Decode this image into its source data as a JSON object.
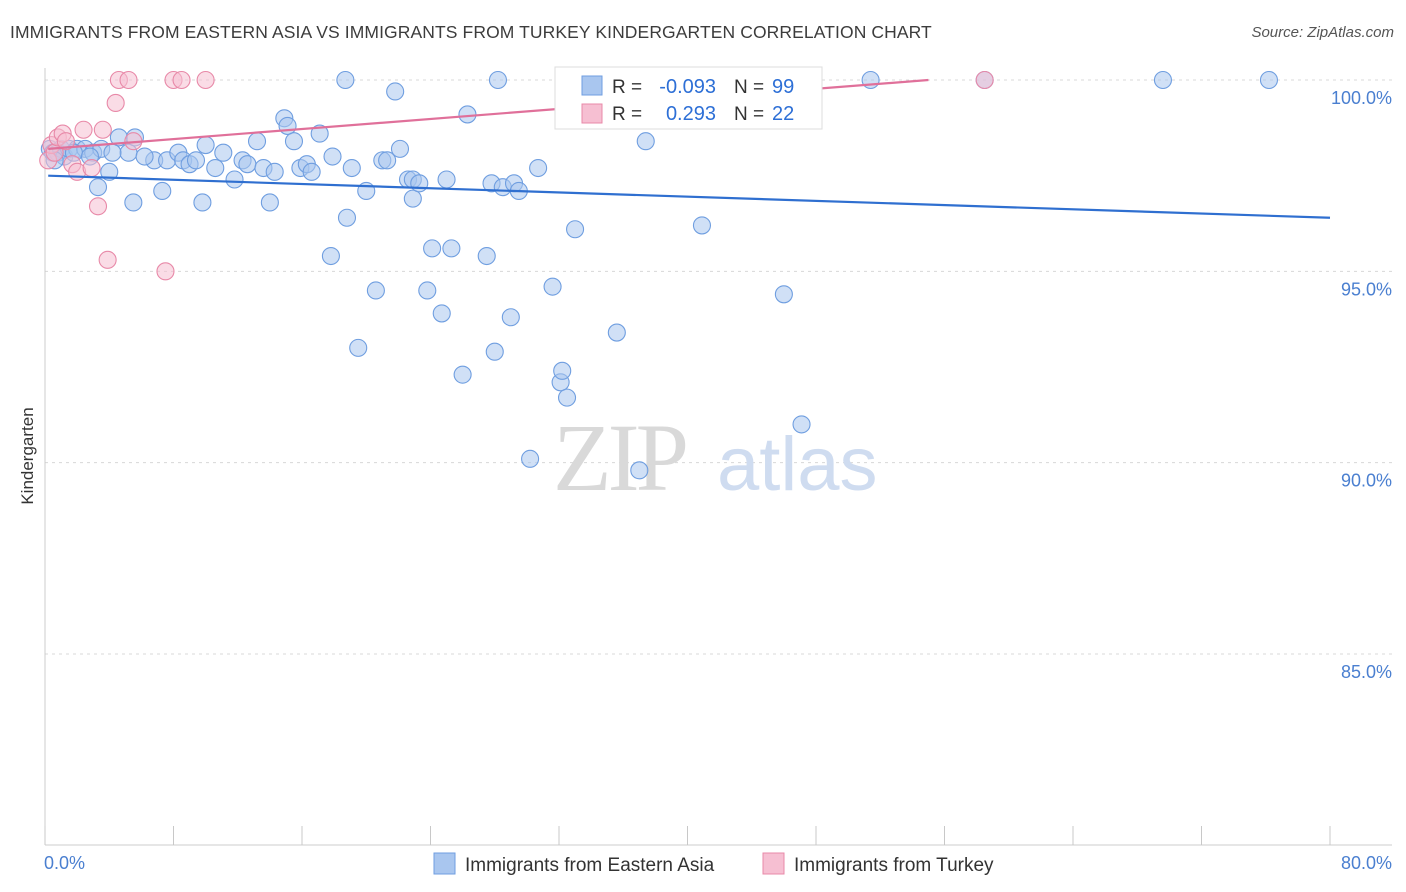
{
  "title": "IMMIGRANTS FROM EASTERN ASIA VS IMMIGRANTS FROM TURKEY KINDERGARTEN CORRELATION CHART",
  "source": "Source: ZipAtlas.com",
  "watermark": {
    "zip": "ZIP",
    "atlas": "atlas"
  },
  "chart_data": {
    "type": "scatter",
    "ylabel": "Kindergarten",
    "x_ticks": [
      "0.0%",
      "80.0%"
    ],
    "y_ticks": [
      "85.0%",
      "90.0%",
      "95.0%",
      "100.0%"
    ],
    "xlim": [
      0,
      80
    ],
    "ylim": [
      80.5,
      100.9
    ],
    "grid": "horizontal dashed",
    "legend_placement": "bottom-center",
    "stats_box": [
      {
        "r_label": "R =",
        "r": "-0.093",
        "n_label": "N =",
        "n": "99"
      },
      {
        "r_label": "R =",
        "r": "0.293",
        "n_label": "N =",
        "n": "22"
      }
    ],
    "series": [
      {
        "name": "Immigrants from Eastern Asia",
        "color": "#6f9ee0",
        "fill": "#a9c6ef",
        "trend": {
          "x0": 0.2,
          "y0": 97.5,
          "x1": 80,
          "y1": 96.4
        },
        "points": [
          [
            0.3,
            98.2
          ],
          [
            0.5,
            98.1
          ],
          [
            0.8,
            98.1
          ],
          [
            1.0,
            98.2
          ],
          [
            1.2,
            98.0
          ],
          [
            1.5,
            98.2
          ],
          [
            2.0,
            98.2
          ],
          [
            2.5,
            98.2
          ],
          [
            3.0,
            98.1
          ],
          [
            3.5,
            98.2
          ],
          [
            3.3,
            97.2
          ],
          [
            4.0,
            97.6
          ],
          [
            4.6,
            98.5
          ],
          [
            5.2,
            98.1
          ],
          [
            5.6,
            98.5
          ],
          [
            5.5,
            96.8
          ],
          [
            6.8,
            97.9
          ],
          [
            7.3,
            97.1
          ],
          [
            7.6,
            97.9
          ],
          [
            8.3,
            98.1
          ],
          [
            8.6,
            97.9
          ],
          [
            9.0,
            97.8
          ],
          [
            9.4,
            97.9
          ],
          [
            9.8,
            96.8
          ],
          [
            10.0,
            98.3
          ],
          [
            10.6,
            97.7
          ],
          [
            11.1,
            98.1
          ],
          [
            11.8,
            97.4
          ],
          [
            12.3,
            97.9
          ],
          [
            12.6,
            97.8
          ],
          [
            13.2,
            98.4
          ],
          [
            13.6,
            97.7
          ],
          [
            14.0,
            96.8
          ],
          [
            14.3,
            97.6
          ],
          [
            14.9,
            99.0
          ],
          [
            15.1,
            98.8
          ],
          [
            15.5,
            98.4
          ],
          [
            15.9,
            97.7
          ],
          [
            16.3,
            97.8
          ],
          [
            16.6,
            97.6
          ],
          [
            17.1,
            98.6
          ],
          [
            17.8,
            95.4
          ],
          [
            17.9,
            98.0
          ],
          [
            18.7,
            100.0
          ],
          [
            18.8,
            96.4
          ],
          [
            19.1,
            97.7
          ],
          [
            19.5,
            93.0
          ],
          [
            20.0,
            97.1
          ],
          [
            20.6,
            94.5
          ],
          [
            21.0,
            97.9
          ],
          [
            21.3,
            97.9
          ],
          [
            21.8,
            99.7
          ],
          [
            22.1,
            98.2
          ],
          [
            22.6,
            97.4
          ],
          [
            22.9,
            97.4
          ],
          [
            22.9,
            96.9
          ],
          [
            23.3,
            97.3
          ],
          [
            23.8,
            94.5
          ],
          [
            24.1,
            95.6
          ],
          [
            24.7,
            93.9
          ],
          [
            25.0,
            97.4
          ],
          [
            25.3,
            95.6
          ],
          [
            26.0,
            92.3
          ],
          [
            26.3,
            99.1
          ],
          [
            27.5,
            95.4
          ],
          [
            27.8,
            97.3
          ],
          [
            28.0,
            92.9
          ],
          [
            28.2,
            100.0
          ],
          [
            28.5,
            97.2
          ],
          [
            29.0,
            93.8
          ],
          [
            29.2,
            97.3
          ],
          [
            29.5,
            97.1
          ],
          [
            30.2,
            90.1
          ],
          [
            30.7,
            97.7
          ],
          [
            31.6,
            94.6
          ],
          [
            32.1,
            92.1
          ],
          [
            32.2,
            92.4
          ],
          [
            32.5,
            91.7
          ],
          [
            33.0,
            96.1
          ],
          [
            34.1,
            100.0
          ],
          [
            35.0,
            100.0
          ],
          [
            35.6,
            93.4
          ],
          [
            36.0,
            100.0
          ],
          [
            37.0,
            89.8
          ],
          [
            37.4,
            98.4
          ],
          [
            40.2,
            100.0
          ],
          [
            40.9,
            96.2
          ],
          [
            42.9,
            100.0
          ],
          [
            46.0,
            94.4
          ],
          [
            47.1,
            91.0
          ],
          [
            51.4,
            100.0
          ],
          [
            58.5,
            100.0
          ],
          [
            69.6,
            100.0
          ],
          [
            76.2,
            100.0
          ],
          [
            0.6,
            97.9
          ],
          [
            1.8,
            98.1
          ],
          [
            2.8,
            98.0
          ],
          [
            4.2,
            98.1
          ],
          [
            6.2,
            98.0
          ]
        ]
      },
      {
        "name": "Immigrants from Turkey",
        "color": "#e889a8",
        "fill": "#f6bfd2",
        "trend": {
          "x0": 0.2,
          "y0": 98.2,
          "x1": 55,
          "y1": 100.0
        },
        "points": [
          [
            0.2,
            97.9
          ],
          [
            0.4,
            98.3
          ],
          [
            0.6,
            98.1
          ],
          [
            0.8,
            98.5
          ],
          [
            1.1,
            98.6
          ],
          [
            1.3,
            98.4
          ],
          [
            1.7,
            97.8
          ],
          [
            2.0,
            97.6
          ],
          [
            2.4,
            98.7
          ],
          [
            2.9,
            97.7
          ],
          [
            3.3,
            96.7
          ],
          [
            3.6,
            98.7
          ],
          [
            3.9,
            95.3
          ],
          [
            4.4,
            99.4
          ],
          [
            4.6,
            100.0
          ],
          [
            5.2,
            100.0
          ],
          [
            5.5,
            98.4
          ],
          [
            7.5,
            95.0
          ],
          [
            8.0,
            100.0
          ],
          [
            8.5,
            100.0
          ],
          [
            10.0,
            100.0
          ],
          [
            58.5,
            100.0
          ]
        ]
      }
    ]
  }
}
